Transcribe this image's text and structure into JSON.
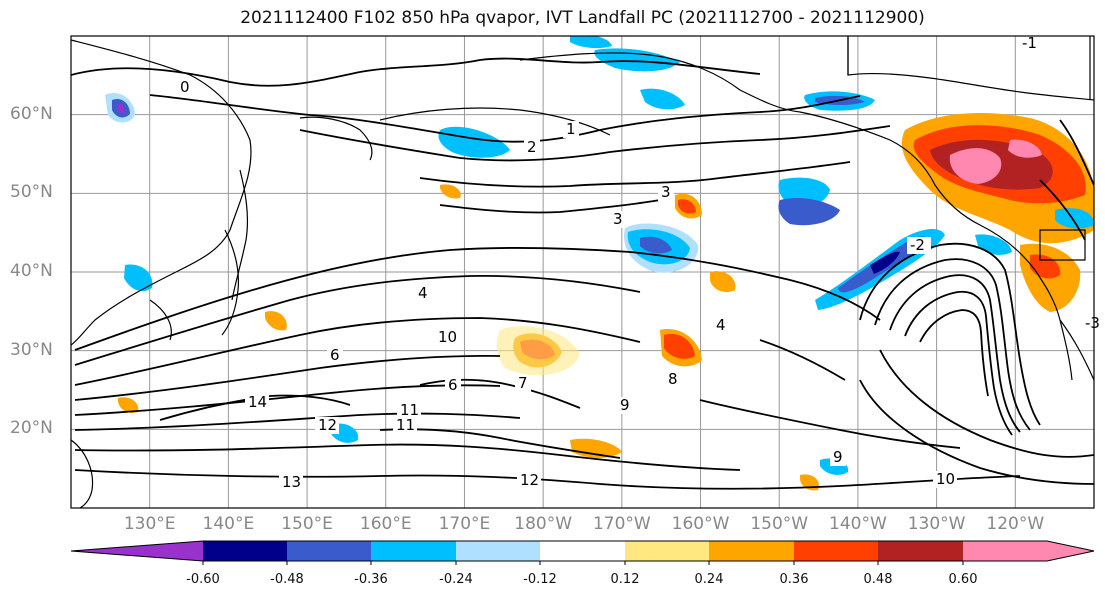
{
  "title": "2021112400 F102 850 hPa qvapor, IVT Landfall PC (2021112700 - 2021112900)",
  "lat_labels": [
    "60°N",
    "50°N",
    "40°N",
    "30°N",
    "20°N"
  ],
  "lon_labels": [
    "130°E",
    "140°E",
    "150°E",
    "160°E",
    "170°E",
    "180°W",
    "170°W",
    "160°W",
    "150°W",
    "140°W",
    "130°W",
    "120°W"
  ],
  "colorbar": {
    "colors": [
      "#9932cc",
      "#00008b",
      "#3a5bcc",
      "#00bfff",
      "#b0e0ff",
      "#ffffff",
      "#ffe880",
      "#ffa500",
      "#ff4000",
      "#b22222",
      "#ff88b0",
      "#ff88b0"
    ],
    "tick_labels": [
      "-0.60",
      "-0.48",
      "-0.36",
      "-0.24",
      "-0.12",
      "0.12",
      "0.24",
      "0.36",
      "0.48",
      "0.60"
    ]
  },
  "contour_labels": [
    "0",
    "1",
    "2",
    "3",
    "3",
    "4",
    "4",
    "6",
    "6",
    "7",
    "8",
    "9",
    "10",
    "11",
    "12",
    "13",
    "14",
    "9",
    "10",
    "11",
    "12",
    "-1",
    "-2",
    "-3"
  ],
  "chart_data": {
    "type": "heatmap",
    "variable": "850 hPa qvapor, IVT Landfall PC",
    "colorbar_levels": [
      -0.6,
      -0.48,
      -0.36,
      -0.24,
      -0.12,
      0.12,
      0.24,
      0.36,
      0.48,
      0.6
    ],
    "xlim": [
      120,
      250
    ],
    "ylim": [
      10,
      70
    ],
    "lat_ticks": [
      60,
      50,
      40,
      30,
      20
    ],
    "lon_ticks": [
      130,
      140,
      150,
      160,
      170,
      180,
      190,
      200,
      210,
      220,
      230,
      240
    ],
    "grid": true
  }
}
